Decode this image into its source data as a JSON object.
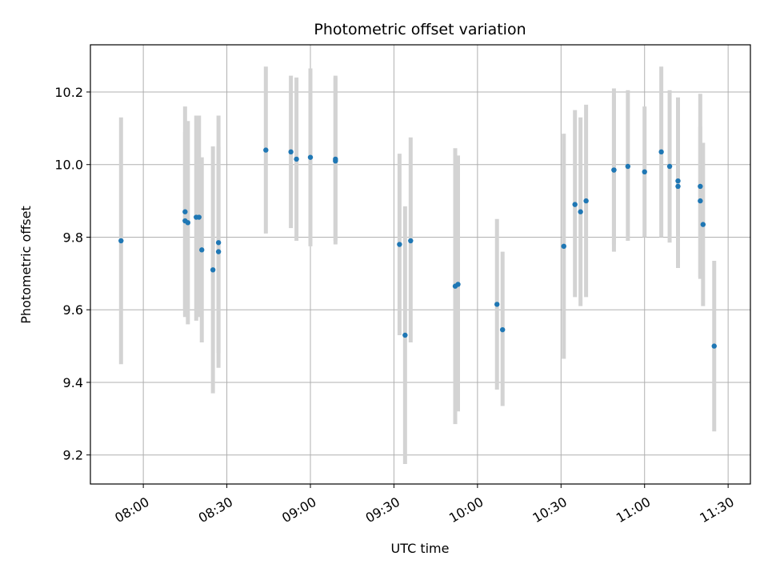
{
  "chart_data": {
    "type": "scatter",
    "title": "Photometric offset variation",
    "xlabel": "UTC time",
    "ylabel": "Photometric offset",
    "xlim": [
      "07:41",
      "11:38"
    ],
    "ylim": [
      9.12,
      10.33
    ],
    "x_ticks": [
      "08:00",
      "08:30",
      "09:00",
      "09:30",
      "10:00",
      "10:30",
      "11:00",
      "11:30"
    ],
    "y_ticks": [
      9.2,
      9.4,
      9.6,
      9.8,
      10.0,
      10.2
    ],
    "grid": true,
    "colors": {
      "point": "#1f77b4",
      "errorbar": "#d3d3d3",
      "grid": "#b0b0b0"
    },
    "series": [
      {
        "points": [
          {
            "x": "07:52",
            "y": 9.79,
            "lo": 9.45,
            "hi": 10.13
          },
          {
            "x": "08:15",
            "y": 9.845,
            "lo": 9.6,
            "hi": 10.09
          },
          {
            "x": "08:15",
            "y": 9.87,
            "lo": 9.58,
            "hi": 10.16
          },
          {
            "x": "08:16",
            "y": 9.84,
            "lo": 9.56,
            "hi": 10.12
          },
          {
            "x": "08:19",
            "y": 9.855,
            "lo": 9.57,
            "hi": 10.135
          },
          {
            "x": "08:20",
            "y": 9.855,
            "lo": 9.58,
            "hi": 10.135
          },
          {
            "x": "08:21",
            "y": 9.765,
            "lo": 9.51,
            "hi": 10.02
          },
          {
            "x": "08:25",
            "y": 9.71,
            "lo": 9.37,
            "hi": 10.05
          },
          {
            "x": "08:27",
            "y": 9.785,
            "lo": 9.44,
            "hi": 10.135
          },
          {
            "x": "08:27",
            "y": 9.76,
            "lo": 9.48,
            "hi": 10.05
          },
          {
            "x": "08:44",
            "y": 10.04,
            "lo": 9.81,
            "hi": 10.27
          },
          {
            "x": "08:53",
            "y": 10.035,
            "lo": 9.825,
            "hi": 10.245
          },
          {
            "x": "08:55",
            "y": 10.015,
            "lo": 9.79,
            "hi": 10.24
          },
          {
            "x": "09:00",
            "y": 10.02,
            "lo": 9.775,
            "hi": 10.265
          },
          {
            "x": "09:09",
            "y": 10.015,
            "lo": 9.79,
            "hi": 10.245
          },
          {
            "x": "09:09",
            "y": 10.01,
            "lo": 9.78,
            "hi": 10.24
          },
          {
            "x": "09:32",
            "y": 9.78,
            "lo": 9.53,
            "hi": 10.03
          },
          {
            "x": "09:34",
            "y": 9.53,
            "lo": 9.175,
            "hi": 9.885
          },
          {
            "x": "09:36",
            "y": 9.79,
            "lo": 9.51,
            "hi": 10.075
          },
          {
            "x": "09:52",
            "y": 9.665,
            "lo": 9.285,
            "hi": 10.045
          },
          {
            "x": "09:53",
            "y": 9.67,
            "lo": 9.32,
            "hi": 10.025
          },
          {
            "x": "10:07",
            "y": 9.615,
            "lo": 9.38,
            "hi": 9.85
          },
          {
            "x": "10:09",
            "y": 9.545,
            "lo": 9.335,
            "hi": 9.76
          },
          {
            "x": "10:31",
            "y": 9.775,
            "lo": 9.465,
            "hi": 10.085
          },
          {
            "x": "10:35",
            "y": 9.89,
            "lo": 9.635,
            "hi": 10.15
          },
          {
            "x": "10:37",
            "y": 9.87,
            "lo": 9.61,
            "hi": 10.13
          },
          {
            "x": "10:39",
            "y": 9.9,
            "lo": 9.635,
            "hi": 10.165
          },
          {
            "x": "10:49",
            "y": 9.985,
            "lo": 9.78,
            "hi": 10.19
          },
          {
            "x": "10:49",
            "y": 9.985,
            "lo": 9.76,
            "hi": 10.21
          },
          {
            "x": "10:54",
            "y": 9.995,
            "lo": 9.79,
            "hi": 10.205
          },
          {
            "x": "11:00",
            "y": 9.98,
            "lo": 9.8,
            "hi": 10.16
          },
          {
            "x": "11:06",
            "y": 10.035,
            "lo": 9.8,
            "hi": 10.27
          },
          {
            "x": "11:09",
            "y": 9.995,
            "lo": 9.785,
            "hi": 10.205
          },
          {
            "x": "11:12",
            "y": 9.955,
            "lo": 9.72,
            "hi": 10.185
          },
          {
            "x": "11:12",
            "y": 9.94,
            "lo": 9.715,
            "hi": 10.165
          },
          {
            "x": "11:20",
            "y": 9.94,
            "lo": 9.685,
            "hi": 10.195
          },
          {
            "x": "11:20",
            "y": 9.9,
            "lo": 9.69,
            "hi": 10.105
          },
          {
            "x": "11:21",
            "y": 9.835,
            "lo": 9.61,
            "hi": 10.06
          },
          {
            "x": "11:25",
            "y": 9.5,
            "lo": 9.265,
            "hi": 9.735
          }
        ]
      }
    ]
  }
}
